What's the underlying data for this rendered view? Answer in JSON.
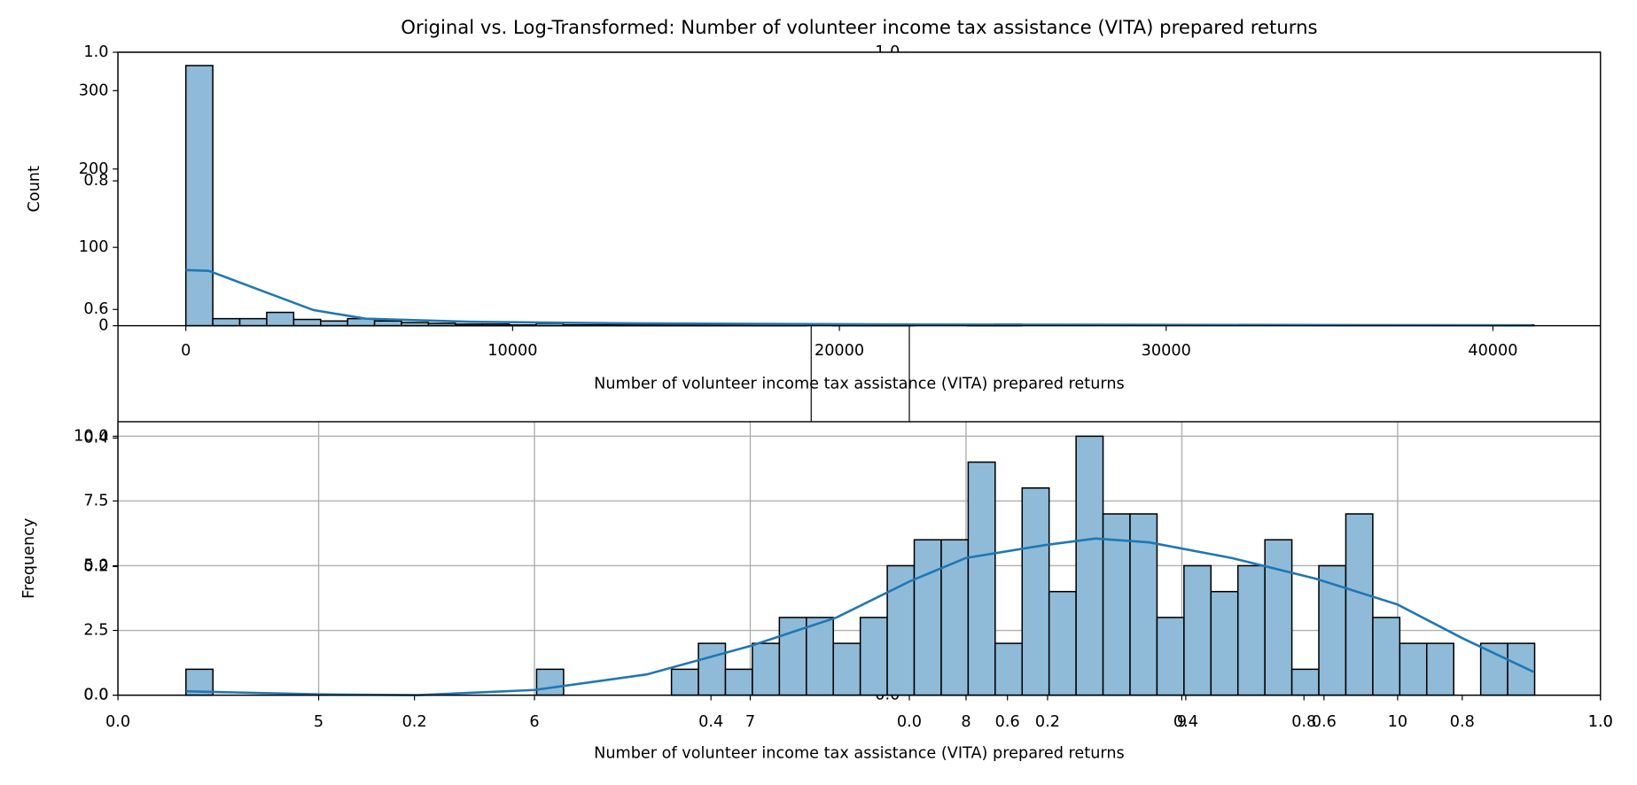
{
  "chart_data": [
    {
      "type": "histogram",
      "title": "Original vs. Log-Transformed: Number of volunteer income tax assistance (VITA) prepared returns",
      "xlabel": "Number of volunteer income tax assistance (VITA) prepared returns",
      "ylabel": "Count",
      "bins": [
        0,
        825,
        1650,
        2475,
        3300,
        4125,
        4950,
        5775,
        6600,
        7425,
        8250,
        9075,
        9900,
        10725,
        11550,
        12375,
        13200,
        14025,
        14850,
        15675,
        16500,
        17325,
        18150,
        18975,
        19800,
        20625,
        21450,
        22275,
        23100,
        23925,
        24750,
        25575,
        26400,
        27225,
        28050,
        28875,
        29700,
        30525,
        31350,
        32175,
        33000,
        33825,
        34650,
        35475,
        36300,
        37125,
        37950,
        38775,
        39600,
        40425,
        41250
      ],
      "counts": [
        332,
        9,
        9,
        17,
        8,
        6,
        9,
        6,
        4,
        3,
        2,
        2,
        1,
        3,
        1,
        1,
        1,
        1,
        1,
        1,
        1,
        2,
        1,
        0,
        1,
        1,
        1,
        0,
        0,
        1,
        2,
        0,
        0,
        0,
        0,
        0,
        0,
        0,
        0,
        0,
        0,
        0,
        0,
        0,
        0,
        0,
        0,
        0,
        0,
        1
      ],
      "color": "#8fbbd9",
      "kde": {
        "color": "#1f77b4",
        "x": [
          0,
          703,
          2300,
          3900,
          5500,
          8700,
          13500,
          23000,
          41200
        ],
        "y": [
          71,
          70,
          45,
          20,
          9,
          5,
          3,
          1.5,
          0.5
        ]
      },
      "xlim": [
        -2077,
        43291
      ],
      "ylim": [
        0,
        349
      ],
      "xticks": [
        0,
        10000,
        20000,
        30000,
        40000
      ],
      "yticks": [
        0,
        100,
        200,
        300
      ],
      "grid": false
    },
    {
      "type": "histogram",
      "xlabel": "Number of volunteer income tax assistance (VITA) prepared returns",
      "ylabel": "Frequency",
      "bins": [
        4.385,
        4.51,
        4.635,
        4.76,
        4.885,
        5.01,
        5.135,
        5.26,
        5.385,
        5.51,
        5.635,
        5.76,
        5.885,
        6.01,
        6.135,
        6.26,
        6.385,
        6.51,
        6.635,
        6.76,
        6.885,
        7.01,
        7.135,
        7.26,
        7.385,
        7.51,
        7.635,
        7.76,
        7.885,
        8.01,
        8.135,
        8.26,
        8.385,
        8.51,
        8.635,
        8.76,
        8.885,
        9.01,
        9.135,
        9.26,
        9.385,
        9.51,
        9.635,
        9.76,
        9.885,
        10.01,
        10.135,
        10.26,
        10.385,
        10.51,
        10.635
      ],
      "counts": [
        1,
        0,
        0,
        0,
        0,
        0,
        0,
        0,
        0,
        0,
        0,
        0,
        0,
        1,
        0,
        0,
        0,
        0,
        1,
        2,
        1,
        2,
        3,
        3,
        2,
        3,
        5,
        6,
        6,
        9,
        2,
        8,
        4,
        10,
        7,
        7,
        3,
        5,
        4,
        5,
        6,
        1,
        5,
        7,
        3,
        2,
        2,
        0,
        2,
        2
      ],
      "color": "#8fbbd9",
      "kde": {
        "color": "#1f77b4",
        "x": [
          4.385,
          5.0,
          5.46,
          6.0,
          6.52,
          7.0,
          7.4,
          7.74,
          8.0,
          8.37,
          8.6,
          8.85,
          9.23,
          9.62,
          10.0,
          10.3,
          10.63
        ],
        "y": [
          0.15,
          0.03,
          0,
          0.2,
          0.8,
          1.9,
          3.0,
          4.4,
          5.3,
          5.8,
          6.05,
          5.9,
          5.3,
          4.5,
          3.5,
          2.2,
          0.9
        ]
      },
      "xlim": [
        4.07,
        10.94
      ],
      "ylim": [
        0,
        10.56
      ],
      "xticks": [
        5,
        6,
        7,
        8,
        9,
        10
      ],
      "yticks": [
        {
          "value": 0,
          "label": "0.0"
        },
        2.5,
        {
          "value": 5,
          "label": "5.0"
        },
        7.5,
        {
          "value": 10,
          "label": "10.0"
        }
      ],
      "grid": true
    },
    {
      "type": "axes",
      "xlim": [
        0,
        1
      ],
      "ylim": [
        0,
        1
      ],
      "xticks": [
        {
          "value": 0,
          "label": "0.0"
        },
        0.2,
        0.4,
        0.6,
        0.8,
        {
          "value": 1,
          "label": "1.0"
        }
      ],
      "yticks": [
        {
          "value": 0,
          "label": "0.0"
        },
        0.2,
        0.4,
        0.6,
        0.8,
        {
          "value": 1,
          "label": "1.0"
        }
      ]
    },
    {
      "type": "axes",
      "xlim": [
        0,
        1
      ],
      "ylim": [
        0,
        1
      ],
      "xticks": [
        {
          "value": 0,
          "label": "0.0"
        },
        0.2,
        0.4,
        0.6,
        0.8,
        {
          "value": 1,
          "label": "1.0"
        }
      ],
      "yticks": [
        {
          "value": 0,
          "label": "0.0"
        },
        {
          "value": 1,
          "label": "1.0"
        }
      ]
    }
  ]
}
